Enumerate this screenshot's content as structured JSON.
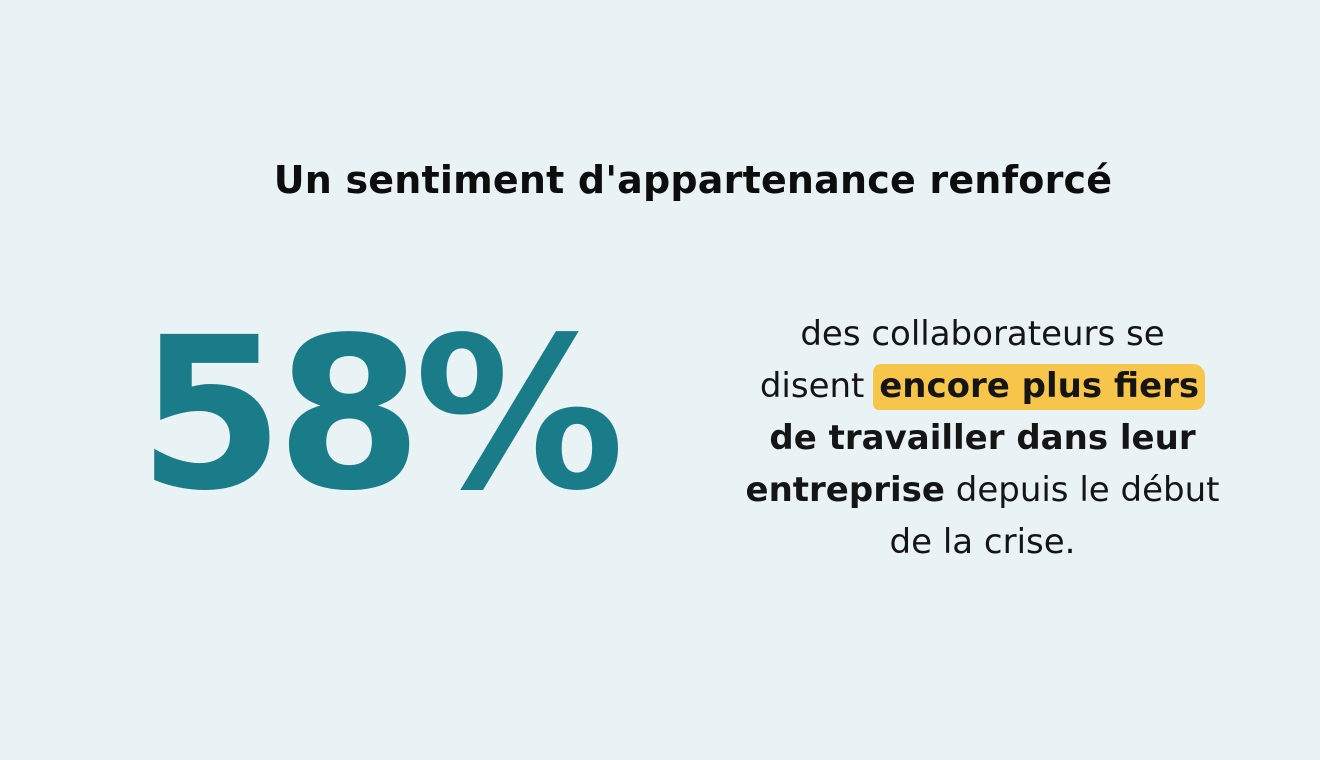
{
  "slide": {
    "title": "Un sentiment d'appartenance renforcé",
    "stat": "58%",
    "description": {
      "line1": "des collaborateurs se",
      "line2_plain": "disent",
      "line2_highlight": "encore plus fiers",
      "line3_bold": "de travailler dans leur",
      "line4_bold": "entreprise",
      "line4_plain": "depuis le début",
      "line5": "de la crise."
    }
  },
  "colors": {
    "background": "#e9f2f5",
    "accent": "#1a7c88",
    "highlight": "#f7c54a",
    "text": "#111111"
  }
}
